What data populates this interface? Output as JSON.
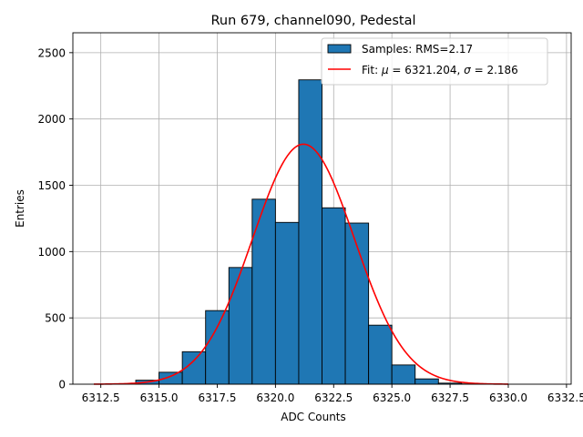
{
  "chart_data": {
    "type": "bar",
    "title": "Run 679, channel090, Pedestal",
    "xlabel": "ADC Counts",
    "ylabel": "Entries",
    "xlim": [
      6311.3,
      6332.7
    ],
    "ylim": [
      0,
      2650
    ],
    "xticks": [
      6312.5,
      6315.0,
      6317.5,
      6320.0,
      6322.5,
      6325.0,
      6327.5,
      6330.0,
      6332.5
    ],
    "xtick_labels": [
      "6312.5",
      "6315.0",
      "6317.5",
      "6320.0",
      "6322.5",
      "6325.0",
      "6327.5",
      "6330.0",
      "6332.5"
    ],
    "yticks": [
      0,
      500,
      1000,
      1500,
      2000,
      2500
    ],
    "ytick_labels": [
      "0",
      "500",
      "1000",
      "1500",
      "2000",
      "2500"
    ],
    "grid": true,
    "legend_position": "top-right",
    "bin_width": 1,
    "bins": [
      {
        "left": 6314,
        "count": 30
      },
      {
        "left": 6315,
        "count": 90
      },
      {
        "left": 6316,
        "count": 245
      },
      {
        "left": 6317,
        "count": 555
      },
      {
        "left": 6318,
        "count": 880
      },
      {
        "left": 6319,
        "count": 1395
      },
      {
        "left": 6320,
        "count": 1220
      },
      {
        "left": 6321,
        "count": 2295
      },
      {
        "left": 6322,
        "count": 1330
      },
      {
        "left": 6323,
        "count": 1215
      },
      {
        "left": 6324,
        "count": 445
      },
      {
        "left": 6325,
        "count": 145
      },
      {
        "left": 6326,
        "count": 40
      },
      {
        "left": 6327,
        "count": 8
      },
      {
        "left": 6328,
        "count": 2
      }
    ],
    "fit": {
      "mu": 6321.204,
      "sigma": 2.186,
      "amplitude": 1810,
      "x_range": [
        6312.2,
        6330.0
      ]
    },
    "legend": [
      {
        "series": "histogram",
        "label": "Samples: RMS=2.17",
        "color": "#1f77b4"
      },
      {
        "series": "fit",
        "label_prefix": "Fit: ",
        "mu_symbol": "μ",
        "mu_text": " = 6321.204, ",
        "sigma_symbol": "σ",
        "sigma_text": " = 2.186",
        "color": "#ff0000"
      }
    ]
  }
}
